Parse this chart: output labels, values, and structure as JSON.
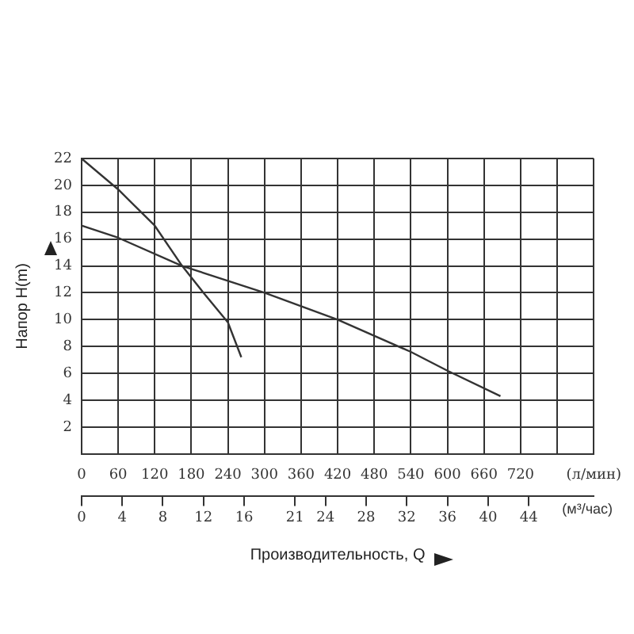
{
  "chart_data": {
    "type": "line",
    "xlabel": "Производительность, Q",
    "ylabel": "Напор H(m)",
    "x2label": "(м³/час)",
    "xlim": [
      0,
      840
    ],
    "xticks": [
      0,
      60,
      120,
      180,
      240,
      300,
      360,
      420,
      480,
      540,
      600,
      660,
      720,
      {
        "value": 780,
        "label": null
      },
      {
        "value": 840,
        "label": "(л/мин)"
      }
    ],
    "x2lim": [
      0,
      50.4
    ],
    "x2ticks": [
      0,
      4,
      8,
      12,
      16,
      21,
      24,
      28,
      32,
      36,
      40,
      44
    ],
    "ylim": [
      0,
      22
    ],
    "yticks": [
      2,
      4,
      6,
      8,
      10,
      12,
      14,
      16,
      18,
      20,
      22
    ],
    "grid": true,
    "marker": "none",
    "series": [
      {
        "color": "#333333",
        "x": [
          0,
          60,
          120,
          165,
          200,
          240,
          262
        ],
        "values": [
          22,
          19.7,
          17,
          14,
          12,
          9.8,
          7.2
        ]
      },
      {
        "color": "#333333",
        "x": [
          0,
          60,
          165,
          300,
          420,
          540,
          600,
          687
        ],
        "values": [
          17,
          16.1,
          14,
          12,
          10,
          7.6,
          6.2,
          4.3
        ]
      }
    ]
  }
}
